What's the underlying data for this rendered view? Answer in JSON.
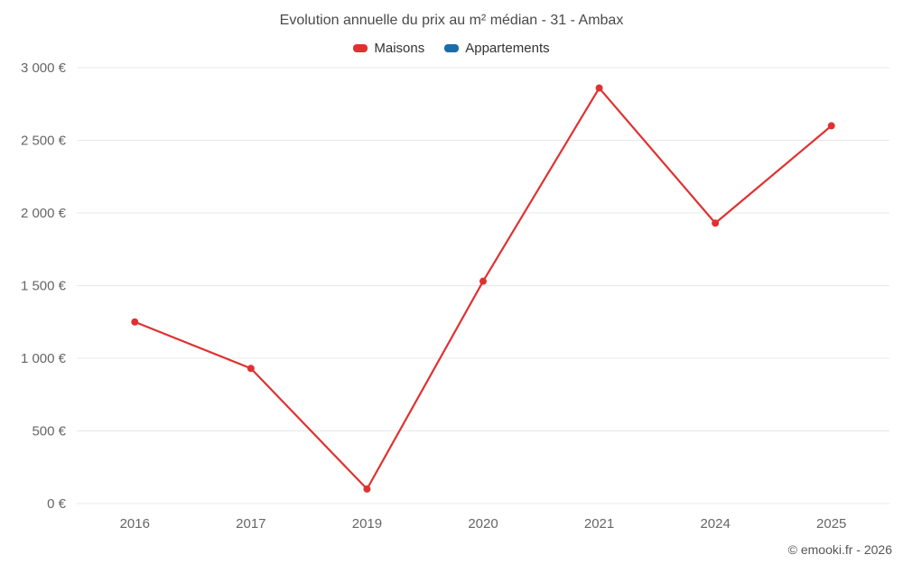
{
  "title": "Evolution annuelle du prix au m² médian - 31 - Ambax",
  "footer": "© emooki.fr - 2026",
  "legend": [
    {
      "label": "Maisons",
      "color": "#e03131"
    },
    {
      "label": "Appartements",
      "color": "#1b6ca8"
    }
  ],
  "chart_data": {
    "type": "line",
    "title": "Evolution annuelle du prix au m² médian - 31 - Ambax",
    "categories": [
      "2016",
      "2017",
      "2019",
      "2020",
      "2021",
      "2024",
      "2025"
    ],
    "series": [
      {
        "name": "Maisons",
        "color": "#e03131",
        "values": [
          1250,
          930,
          100,
          1530,
          2860,
          1930,
          2600
        ]
      },
      {
        "name": "Appartements",
        "color": "#1b6ca8",
        "values": []
      }
    ],
    "xlabel": "",
    "ylabel": "",
    "ylim": [
      0,
      3000
    ],
    "ytick_step": 500,
    "ytick_labels": [
      "0 €",
      "500 €",
      "1 000 €",
      "1 500 €",
      "2 000 €",
      "2 500 €",
      "3 000 €"
    ],
    "grid": true,
    "grid_color": "#e8e8e8",
    "legend_position": "top"
  }
}
